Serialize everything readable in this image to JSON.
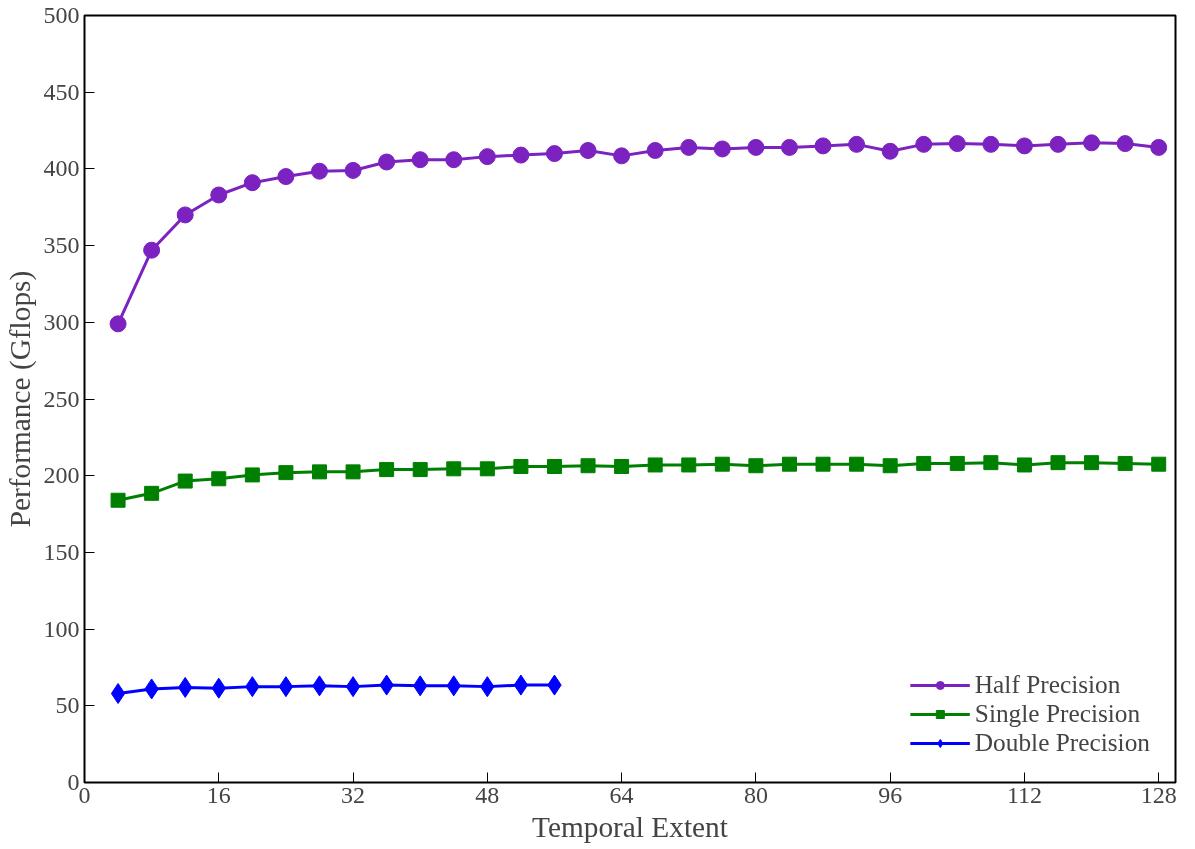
{
  "chart_data": {
    "type": "line",
    "xlabel": "Temporal Extent",
    "ylabel": "Performance (Gflops)",
    "xlim": [
      0,
      130
    ],
    "xticks": [
      0,
      16,
      32,
      48,
      64,
      80,
      96,
      112,
      128
    ],
    "ylim": [
      0,
      500
    ],
    "yticks": [
      0,
      50,
      100,
      150,
      200,
      250,
      300,
      350,
      400,
      450,
      500
    ],
    "grid": false,
    "legend": "bottom right",
    "line_style": "solid",
    "series": [
      {
        "name": "Half Precision",
        "color": "#7b22c0",
        "marker": "circle",
        "x": [
          4,
          8,
          12,
          16,
          20,
          24,
          28,
          32,
          36,
          40,
          44,
          48,
          52,
          56,
          60,
          64,
          68,
          72,
          76,
          80,
          84,
          88,
          92,
          96,
          100,
          104,
          108,
          112,
          116,
          120,
          124,
          128
        ],
        "values": [
          299,
          347,
          370,
          383,
          391,
          395,
          398.5,
          399,
          404.5,
          406,
          406,
          408,
          409,
          410,
          412,
          408.5,
          412,
          414,
          413,
          414,
          414,
          415,
          416,
          411.5,
          416,
          416.5,
          416,
          415,
          416,
          417,
          416.5,
          414
        ]
      },
      {
        "name": "Single Precision",
        "color": "#008000",
        "marker": "square",
        "x": [
          4,
          8,
          12,
          16,
          20,
          24,
          28,
          32,
          36,
          40,
          44,
          48,
          52,
          56,
          60,
          64,
          68,
          72,
          76,
          80,
          84,
          88,
          92,
          96,
          100,
          104,
          108,
          112,
          116,
          120,
          124,
          128
        ],
        "values": [
          184,
          188.5,
          196.5,
          198,
          200.5,
          202,
          202.5,
          202.5,
          204,
          204,
          204.5,
          204.5,
          206,
          206,
          206.5,
          206,
          207,
          207,
          207.5,
          206.5,
          207.5,
          207.5,
          207.5,
          206.5,
          208,
          208,
          208.5,
          207,
          208.5,
          208.5,
          208,
          207.5
        ]
      },
      {
        "name": "Double Precision",
        "color": "#0000ff",
        "marker": "diamond",
        "x": [
          4,
          8,
          12,
          16,
          20,
          24,
          28,
          32,
          36,
          40,
          44,
          48,
          52,
          56
        ],
        "values": [
          58,
          61,
          62,
          61.5,
          62.5,
          62.5,
          63,
          62.5,
          63.5,
          63,
          63,
          62.5,
          63.5,
          63.5
        ]
      }
    ]
  }
}
